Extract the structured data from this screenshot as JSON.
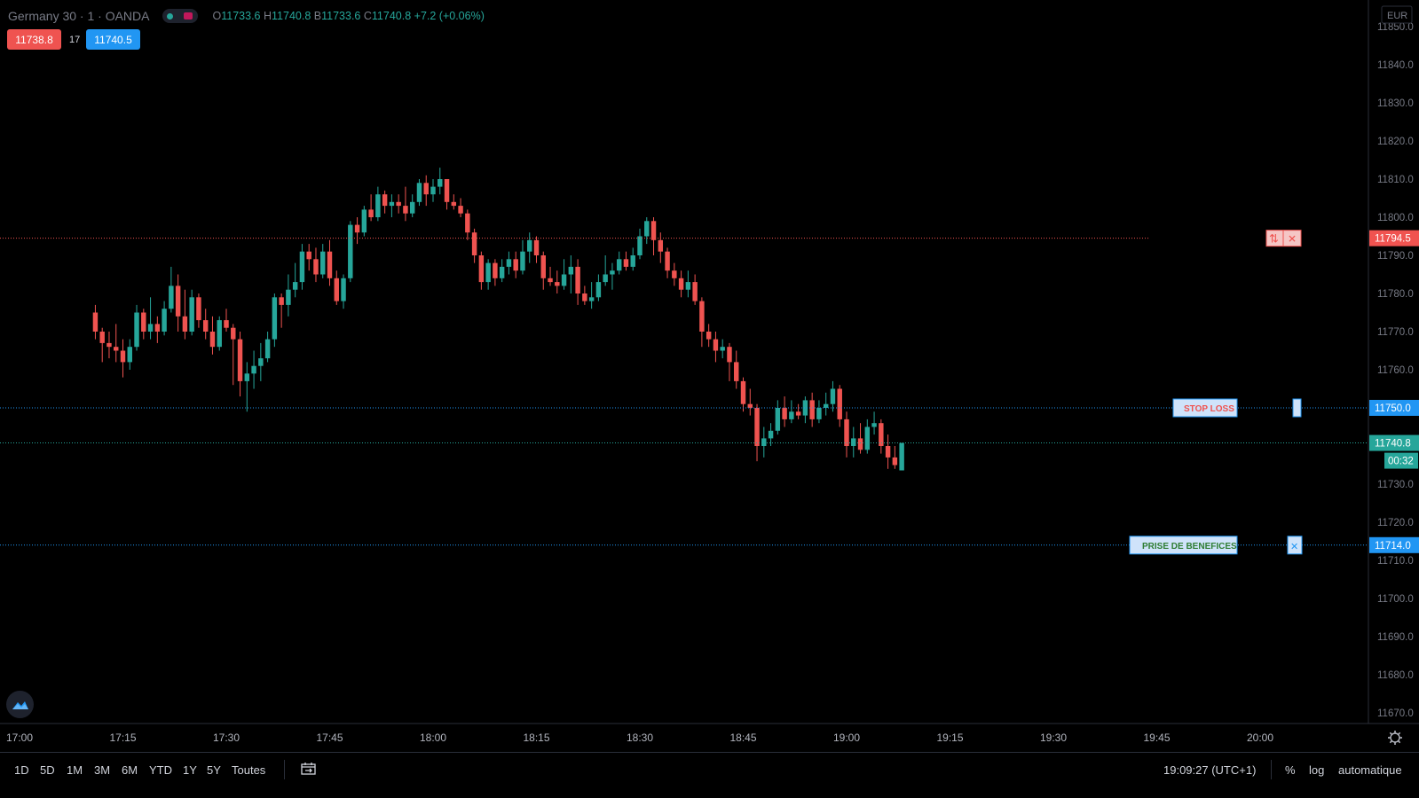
{
  "legend": {
    "symbol": "Germany 30 · 1 · OANDA",
    "open_key": "O",
    "open_val": "11733.6",
    "high_key": "H",
    "high_val": "11740.8",
    "low_key": "B",
    "low_val": "11733.6",
    "close_key": "C",
    "close_val": "11740.8",
    "change": "+7.2 (+0.06%)"
  },
  "quotes": {
    "sell": "11738.8",
    "spread": "17",
    "buy": "11740.5"
  },
  "currency": "EUR",
  "price_axis": [
    "11850.0",
    "11840.0",
    "11830.0",
    "11820.0",
    "11810.0",
    "11800.0",
    "11790.0",
    "11780.0",
    "11770.0",
    "11760.0",
    "11750.0",
    "11740.0",
    "11730.0",
    "11720.0",
    "11710.0",
    "11700.0",
    "11690.0",
    "11680.0",
    "11670.0"
  ],
  "time_axis": [
    "17:00",
    "17:15",
    "17:30",
    "17:45",
    "18:00",
    "18:15",
    "18:30",
    "18:45",
    "19:00",
    "19:15",
    "19:30",
    "19:45",
    "20:00"
  ],
  "orders": {
    "entry": {
      "price": "11794.5",
      "color": "#f05350"
    },
    "stop_loss": {
      "label": "STOP LOSS",
      "price": "11750.0",
      "color": "#2196f3"
    },
    "last_price": {
      "price": "11740.8",
      "countdown": "00:32",
      "color": "#26a69a"
    },
    "take_profit": {
      "label": "PRISE DE BENEFICES",
      "price": "11714.0",
      "color": "#2196f3"
    }
  },
  "ranges": [
    "1D",
    "5D",
    "1M",
    "3M",
    "6M",
    "YTD",
    "1Y",
    "5Y",
    "Toutes"
  ],
  "status": {
    "clock": "19:09:27 (UTC+1)",
    "percent": "%",
    "log": "log",
    "auto": "automatique"
  },
  "colors": {
    "up": "#26a69a",
    "down": "#ef5350",
    "bg": "#000000",
    "grid": "#2a2e39"
  },
  "chart_data": {
    "type": "candlestick",
    "title": "Germany 30 · 1 · OANDA",
    "ylim": [
      11667,
      11853
    ],
    "candles": [
      [
        11775,
        11777,
        11768,
        11770
      ],
      [
        11770,
        11771,
        11762,
        11767
      ],
      [
        11767,
        11770,
        11763,
        11766
      ],
      [
        11766,
        11772,
        11762,
        11765
      ],
      [
        11765,
        11768,
        11758,
        11762
      ],
      [
        11762,
        11768,
        11760,
        11766
      ],
      [
        11766,
        11777,
        11765,
        11775
      ],
      [
        11775,
        11776,
        11768,
        11770
      ],
      [
        11770,
        11779,
        11768,
        11772
      ],
      [
        11772,
        11774,
        11767,
        11770
      ],
      [
        11770,
        11778,
        11769,
        11776
      ],
      [
        11776,
        11787,
        11775,
        11782
      ],
      [
        11782,
        11785,
        11770,
        11774
      ],
      [
        11774,
        11781,
        11768,
        11770
      ],
      [
        11770,
        11781,
        11769,
        11779
      ],
      [
        11779,
        11780,
        11771,
        11773
      ],
      [
        11773,
        11776,
        11768,
        11770
      ],
      [
        11770,
        11774,
        11764,
        11766
      ],
      [
        11766,
        11774,
        11765,
        11773
      ],
      [
        11773,
        11776,
        11770,
        11771
      ],
      [
        11771,
        11772,
        11756,
        11768
      ],
      [
        11768,
        11770,
        11753,
        11757
      ],
      [
        11757,
        11762,
        11749,
        11759
      ],
      [
        11759,
        11765,
        11755,
        11761
      ],
      [
        11761,
        11767,
        11757,
        11763
      ],
      [
        11763,
        11770,
        11762,
        11768
      ],
      [
        11768,
        11780,
        11766,
        11779
      ],
      [
        11779,
        11780,
        11771,
        11777
      ],
      [
        11777,
        11785,
        11774,
        11781
      ],
      [
        11781,
        11788,
        11779,
        11783
      ],
      [
        11783,
        11793,
        11781,
        11791
      ],
      [
        11791,
        11793,
        11786,
        11789
      ],
      [
        11789,
        11792,
        11783,
        11785
      ],
      [
        11785,
        11793,
        11784,
        11791
      ],
      [
        11791,
        11794,
        11782,
        11784
      ],
      [
        11784,
        11786,
        11777,
        11778
      ],
      [
        11778,
        11785,
        11776,
        11784
      ],
      [
        11784,
        11799,
        11783,
        11798
      ],
      [
        11798,
        11800,
        11793,
        11796
      ],
      [
        11796,
        11803,
        11795,
        11802
      ],
      [
        11802,
        11806,
        11799,
        11800
      ],
      [
        11800,
        11808,
        11799,
        11806
      ],
      [
        11806,
        11807,
        11801,
        11803
      ],
      [
        11803,
        11806,
        11800,
        11804
      ],
      [
        11804,
        11806,
        11801,
        11803
      ],
      [
        11803,
        11808,
        11799,
        11801
      ],
      [
        11801,
        11806,
        11800,
        11804
      ],
      [
        11804,
        11810,
        11803,
        11809
      ],
      [
        11809,
        11811,
        11803,
        11806
      ],
      [
        11806,
        11810,
        11804,
        11808
      ],
      [
        11808,
        11813,
        11806,
        11810
      ],
      [
        11810,
        11810,
        11802,
        11804
      ],
      [
        11804,
        11806,
        11802,
        11803
      ],
      [
        11803,
        11805,
        11800,
        11801
      ],
      [
        11801,
        11802,
        11794,
        11796
      ],
      [
        11796,
        11797,
        11788,
        11790
      ],
      [
        11790,
        11791,
        11781,
        11783
      ],
      [
        11783,
        11789,
        11781,
        11788
      ],
      [
        11788,
        11789,
        11782,
        11784
      ],
      [
        11784,
        11789,
        11783,
        11787
      ],
      [
        11787,
        11791,
        11785,
        11789
      ],
      [
        11789,
        11791,
        11784,
        11786
      ],
      [
        11786,
        11794,
        11785,
        11791
      ],
      [
        11791,
        11796,
        11788,
        11794
      ],
      [
        11794,
        11795,
        11788,
        11790
      ],
      [
        11790,
        11791,
        11781,
        11784
      ],
      [
        11784,
        11787,
        11782,
        11783
      ],
      [
        11783,
        11786,
        11780,
        11782
      ],
      [
        11782,
        11789,
        11781,
        11785
      ],
      [
        11785,
        11790,
        11780,
        11787
      ],
      [
        11787,
        11789,
        11777,
        11780
      ],
      [
        11780,
        11782,
        11777,
        11778
      ],
      [
        11778,
        11783,
        11776,
        11779
      ],
      [
        11779,
        11785,
        11778,
        11783
      ],
      [
        11783,
        11790,
        11782,
        11785
      ],
      [
        11785,
        11788,
        11781,
        11786
      ],
      [
        11786,
        11791,
        11785,
        11789
      ],
      [
        11789,
        11791,
        11786,
        11787
      ],
      [
        11787,
        11792,
        11786,
        11790
      ],
      [
        11790,
        11797,
        11789,
        11795
      ],
      [
        11795,
        11800,
        11793,
        11799
      ],
      [
        11799,
        11800,
        11790,
        11794
      ],
      [
        11794,
        11796,
        11788,
        11791
      ],
      [
        11791,
        11792,
        11784,
        11786
      ],
      [
        11786,
        11788,
        11782,
        11784
      ],
      [
        11784,
        11786,
        11779,
        11781
      ],
      [
        11781,
        11786,
        11779,
        11783
      ],
      [
        11783,
        11785,
        11777,
        11778
      ],
      [
        11778,
        11779,
        11766,
        11770
      ],
      [
        11770,
        11772,
        11766,
        11768
      ],
      [
        11768,
        11770,
        11762,
        11765
      ],
      [
        11765,
        11768,
        11763,
        11766
      ],
      [
        11766,
        11767,
        11757,
        11762
      ],
      [
        11762,
        11765,
        11755,
        11757
      ],
      [
        11757,
        11758,
        11749,
        11751
      ],
      [
        11751,
        11755,
        11748,
        11750
      ],
      [
        11750,
        11751,
        11736,
        11740
      ],
      [
        11740,
        11745,
        11737,
        11742
      ],
      [
        11742,
        11746,
        11740,
        11744
      ],
      [
        11744,
        11752,
        11743,
        11750
      ],
      [
        11750,
        11753,
        11745,
        11747
      ],
      [
        11747,
        11752,
        11746,
        11749
      ],
      [
        11749,
        11751,
        11747,
        11748
      ],
      [
        11748,
        11753,
        11746,
        11752
      ],
      [
        11752,
        11754,
        11745,
        11747
      ],
      [
        11747,
        11752,
        11746,
        11750
      ],
      [
        11750,
        11754,
        11748,
        11751
      ],
      [
        11751,
        11757,
        11749,
        11755
      ],
      [
        11755,
        11756,
        11745,
        11747
      ],
      [
        11747,
        11749,
        11737,
        11740
      ],
      [
        11740,
        11745,
        11737,
        11742
      ],
      [
        11742,
        11746,
        11738,
        11739
      ],
      [
        11739,
        11747,
        11738,
        11745
      ],
      [
        11745,
        11749,
        11743,
        11746
      ],
      [
        11746,
        11747,
        11738,
        11740
      ],
      [
        11740,
        11743,
        11734,
        11737
      ],
      [
        11737,
        11740,
        11734,
        11735
      ],
      [
        11733.6,
        11740.8,
        11733.6,
        11740.8
      ]
    ]
  }
}
